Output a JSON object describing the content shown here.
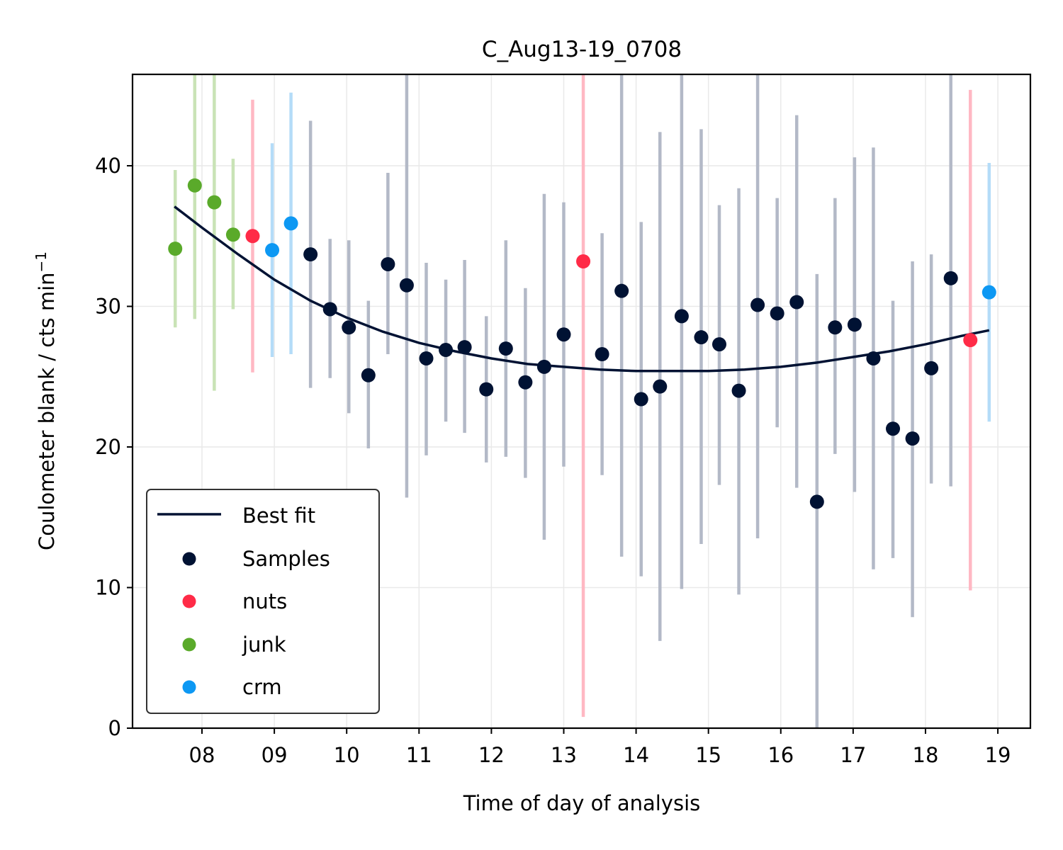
{
  "chart_data": {
    "type": "scatter",
    "title": "C_Aug13-19_0708",
    "xlabel": "Time of day of analysis",
    "ylabel": "Coulometer blank / cts min",
    "ylabel_superscript": "−1",
    "xlim": [
      7.04,
      19.45
    ],
    "ylim": [
      0,
      46.5
    ],
    "x_ticks": [
      8,
      9,
      10,
      11,
      12,
      13,
      14,
      15,
      16,
      17,
      18,
      19
    ],
    "x_tick_labels": [
      "08",
      "09",
      "10",
      "11",
      "12",
      "13",
      "14",
      "15",
      "16",
      "17",
      "18",
      "19"
    ],
    "y_ticks": [
      0,
      10,
      20,
      30,
      40
    ],
    "y_tick_labels": [
      "0",
      "10",
      "20",
      "30",
      "40"
    ],
    "grid": true,
    "legend_position": "lower-left",
    "fit": {
      "name": "Best fit",
      "color": "#001233",
      "x": [
        7.62,
        8.0,
        8.5,
        9.0,
        9.5,
        10.0,
        10.5,
        11.0,
        11.5,
        12.0,
        12.5,
        13.0,
        13.5,
        14.0,
        14.5,
        15.0,
        15.5,
        16.0,
        16.5,
        17.0,
        17.5,
        18.0,
        18.5,
        18.88
      ],
      "y": [
        37.1,
        35.6,
        33.7,
        31.9,
        30.4,
        29.2,
        28.2,
        27.4,
        26.8,
        26.3,
        25.9,
        25.7,
        25.5,
        25.4,
        25.4,
        25.4,
        25.5,
        25.7,
        26.0,
        26.4,
        26.8,
        27.3,
        27.9,
        28.3
      ]
    },
    "series": [
      {
        "name": "Samples",
        "color": "#001233",
        "errorbar_color": "#b3b9c7",
        "points": [
          {
            "x": 9.5,
            "y": 33.7,
            "lo": 24.2,
            "hi": 43.2
          },
          {
            "x": 9.77,
            "y": 29.8,
            "lo": 24.9,
            "hi": 34.8
          },
          {
            "x": 10.03,
            "y": 28.5,
            "lo": 22.4,
            "hi": 34.7
          },
          {
            "x": 10.3,
            "y": 25.1,
            "lo": 19.9,
            "hi": 30.4
          },
          {
            "x": 10.57,
            "y": 33.0,
            "lo": 26.6,
            "hi": 39.5
          },
          {
            "x": 10.83,
            "y": 31.5,
            "lo": 16.4,
            "hi": 46.5
          },
          {
            "x": 11.1,
            "y": 26.3,
            "lo": 19.4,
            "hi": 33.1
          },
          {
            "x": 11.37,
            "y": 26.9,
            "lo": 21.8,
            "hi": 31.9
          },
          {
            "x": 11.63,
            "y": 27.1,
            "lo": 21.0,
            "hi": 33.3
          },
          {
            "x": 11.93,
            "y": 24.1,
            "lo": 18.9,
            "hi": 29.3
          },
          {
            "x": 12.2,
            "y": 27.0,
            "lo": 19.3,
            "hi": 34.7
          },
          {
            "x": 12.47,
            "y": 24.6,
            "lo": 17.8,
            "hi": 31.3
          },
          {
            "x": 12.73,
            "y": 25.7,
            "lo": 13.4,
            "hi": 38.0
          },
          {
            "x": 13.0,
            "y": 28.0,
            "lo": 18.6,
            "hi": 37.4
          },
          {
            "x": 13.53,
            "y": 26.6,
            "lo": 18.0,
            "hi": 35.2
          },
          {
            "x": 13.8,
            "y": 31.1,
            "lo": 12.2,
            "hi": 46.5
          },
          {
            "x": 14.07,
            "y": 23.4,
            "lo": 10.8,
            "hi": 36.0
          },
          {
            "x": 14.33,
            "y": 24.3,
            "lo": 6.2,
            "hi": 42.4
          },
          {
            "x": 14.63,
            "y": 29.3,
            "lo": 9.9,
            "hi": 46.5
          },
          {
            "x": 14.9,
            "y": 27.8,
            "lo": 13.1,
            "hi": 42.6
          },
          {
            "x": 15.15,
            "y": 27.3,
            "lo": 17.3,
            "hi": 37.2
          },
          {
            "x": 15.42,
            "y": 24.0,
            "lo": 9.5,
            "hi": 38.4
          },
          {
            "x": 15.68,
            "y": 30.1,
            "lo": 13.5,
            "hi": 46.5
          },
          {
            "x": 15.95,
            "y": 29.5,
            "lo": 21.4,
            "hi": 37.7
          },
          {
            "x": 16.22,
            "y": 30.3,
            "lo": 17.1,
            "hi": 43.6
          },
          {
            "x": 16.5,
            "y": 16.1,
            "lo": 0.0,
            "hi": 32.3
          },
          {
            "x": 16.75,
            "y": 28.5,
            "lo": 19.5,
            "hi": 37.7
          },
          {
            "x": 17.02,
            "y": 28.7,
            "lo": 16.8,
            "hi": 40.6
          },
          {
            "x": 17.28,
            "y": 26.3,
            "lo": 11.3,
            "hi": 41.3
          },
          {
            "x": 17.55,
            "y": 21.3,
            "lo": 12.1,
            "hi": 30.4
          },
          {
            "x": 17.82,
            "y": 20.6,
            "lo": 7.9,
            "hi": 33.2
          },
          {
            "x": 18.08,
            "y": 25.6,
            "lo": 17.4,
            "hi": 33.7
          },
          {
            "x": 18.35,
            "y": 32.0,
            "lo": 17.2,
            "hi": 46.5
          }
        ]
      },
      {
        "name": "nuts",
        "color": "#ff2b47",
        "errorbar_color": "#ffb8c3",
        "points": [
          {
            "x": 8.7,
            "y": 35.0,
            "lo": 25.3,
            "hi": 44.7
          },
          {
            "x": 13.27,
            "y": 33.2,
            "lo": 0.8,
            "hi": 46.5
          },
          {
            "x": 18.62,
            "y": 27.6,
            "lo": 9.8,
            "hi": 45.4
          }
        ]
      },
      {
        "name": "junk",
        "color": "#5aaa2a",
        "errorbar_color": "#c9e3b6",
        "points": [
          {
            "x": 7.63,
            "y": 34.1,
            "lo": 28.5,
            "hi": 39.7
          },
          {
            "x": 7.9,
            "y": 38.6,
            "lo": 29.1,
            "hi": 46.5
          },
          {
            "x": 8.17,
            "y": 37.4,
            "lo": 24.0,
            "hi": 46.5
          },
          {
            "x": 8.43,
            "y": 35.1,
            "lo": 29.8,
            "hi": 40.5
          }
        ]
      },
      {
        "name": "crm",
        "color": "#0d98f3",
        "errorbar_color": "#b4dcf8",
        "points": [
          {
            "x": 8.97,
            "y": 34.0,
            "lo": 26.4,
            "hi": 41.6
          },
          {
            "x": 9.23,
            "y": 35.9,
            "lo": 26.6,
            "hi": 45.2
          },
          {
            "x": 18.88,
            "y": 31.0,
            "lo": 21.8,
            "hi": 40.2
          }
        ]
      }
    ]
  }
}
